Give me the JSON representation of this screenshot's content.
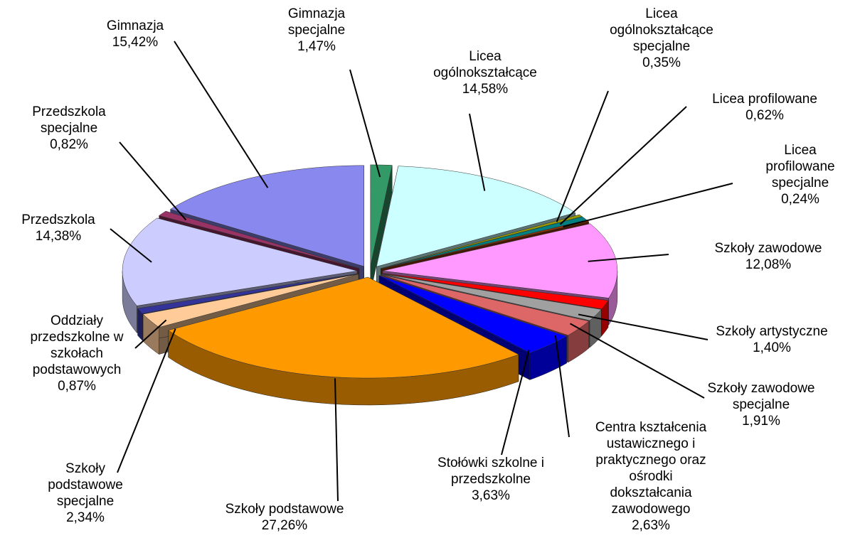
{
  "chart_data": {
    "type": "pie",
    "categories": [
      "Gimnazja specjalne",
      "Licea ogólnokształcące",
      "Licea ogólnokształcące specjalne",
      "Licea profilowane",
      "Licea profilowane specjalne",
      "Szkoły zawodowe",
      "Szkoły artystyczne",
      "Szkoły zawodowe specjalne",
      "Centra kształcenia ustawicznego i praktycznego oraz ośrodki dokształcania zawodowego",
      "Stołówki szkolne i przedszkolne",
      "Szkoły podstawowe",
      "Szkoły podstawowe specjalne",
      "Oddziały przedszkolne w szkołach podstawowych",
      "Przedszkola",
      "Przedszkola specjalne",
      "Gimnazja"
    ],
    "values": [
      1.47,
      14.58,
      0.35,
      0.62,
      0.24,
      12.08,
      1.4,
      1.91,
      2.63,
      3.63,
      27.26,
      2.34,
      0.87,
      14.38,
      0.82,
      15.42
    ],
    "value_labels": [
      "1,47%",
      "14,58%",
      "0,35%",
      "0,62%",
      "0,24%",
      "12,08%",
      "1,40%",
      "1,91%",
      "2,63%",
      "3,63%",
      "27,26%",
      "2,34%",
      "0,87%",
      "14,38%",
      "0,82%",
      "15,42%"
    ],
    "colors": [
      "#339966",
      "#ccffff",
      "#999900",
      "#008080",
      "#993300",
      "#ff99ff",
      "#ff0000",
      "#a0a0a0",
      "#dd6666",
      "#0000ff",
      "#ff9900",
      "#ffcc99",
      "#333399",
      "#ccccff",
      "#993366",
      "#8888ee"
    ]
  }
}
